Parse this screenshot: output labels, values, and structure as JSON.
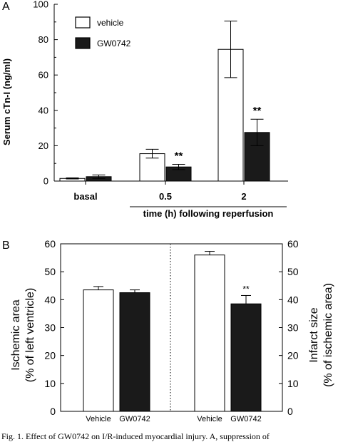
{
  "colors": {
    "vehicle": "#ffffff",
    "gw0742": "#1a1a1a",
    "axis": "#000000"
  },
  "caption": "Fig. 1. Effect of GW0742 on I/R-induced myocardial injury. A, suppression of",
  "chart_data": [
    {
      "panel": "A",
      "type": "bar",
      "ylabel": "Serum cTn-I (ng/ml)",
      "xlabel": "time (h) following reperfusion",
      "ylim": [
        0,
        100
      ],
      "yticks": [
        0,
        20,
        40,
        60,
        80,
        100
      ],
      "categories": [
        "basal",
        "0.5",
        "2"
      ],
      "series": [
        {
          "name": "vehicle",
          "values": [
            1.5,
            15.5,
            74.5
          ],
          "errors": [
            0.3,
            2.5,
            16
          ]
        },
        {
          "name": "GW0742",
          "values": [
            2.5,
            8,
            27.5
          ],
          "errors": [
            1,
            1.5,
            7.5
          ]
        }
      ],
      "annotations": [
        {
          "category": "0.5",
          "series": "GW0742",
          "text": "**"
        },
        {
          "category": "2",
          "series": "GW0742",
          "text": "**"
        }
      ],
      "legend": "top-left",
      "grid": false
    },
    {
      "panel": "B",
      "type": "bar",
      "left_ylabel": [
        "Ischemic area",
        "(% of left ventricle)"
      ],
      "right_ylabel": [
        "Infarct size",
        "(% of ischemic area)"
      ],
      "ylim": [
        0,
        60
      ],
      "yticks": [
        0,
        10,
        20,
        30,
        40,
        50,
        60
      ],
      "groups": [
        {
          "axis": "left",
          "categories": [
            "Vehicle",
            "GW0742"
          ],
          "values": [
            43.5,
            42.5
          ],
          "errors": [
            1.2,
            1
          ]
        },
        {
          "axis": "right",
          "categories": [
            "Vehicle",
            "GW0742"
          ],
          "values": [
            56,
            38.5
          ],
          "errors": [
            1.3,
            3
          ]
        }
      ],
      "annotations": [
        {
          "group": 1,
          "category": "GW0742",
          "text": "**"
        }
      ],
      "grid": false
    }
  ]
}
